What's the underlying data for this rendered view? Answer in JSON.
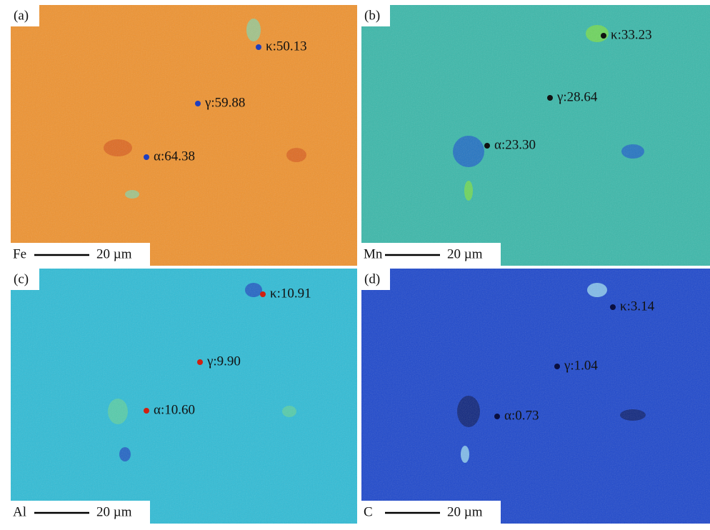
{
  "panels": [
    {
      "label": "(a)",
      "element": "Fe",
      "scale_label": "20 µm",
      "annotations": [
        "κ:50.13",
        "γ:59.88",
        "α:64.38"
      ]
    },
    {
      "label": "(b)",
      "element": "Mn",
      "scale_label": "20 µm",
      "annotations": [
        "κ:33.23",
        "γ:28.64",
        "α:23.30"
      ]
    },
    {
      "label": "(c)",
      "element": "Al",
      "scale_label": "20 µm",
      "annotations": [
        "κ:10.91",
        "γ:9.90",
        "α:10.60"
      ]
    },
    {
      "label": "(d)",
      "element": "C",
      "scale_label": "20 µm",
      "annotations": [
        "κ:3.14",
        "γ:1.04",
        "α:0.73"
      ]
    }
  ]
}
